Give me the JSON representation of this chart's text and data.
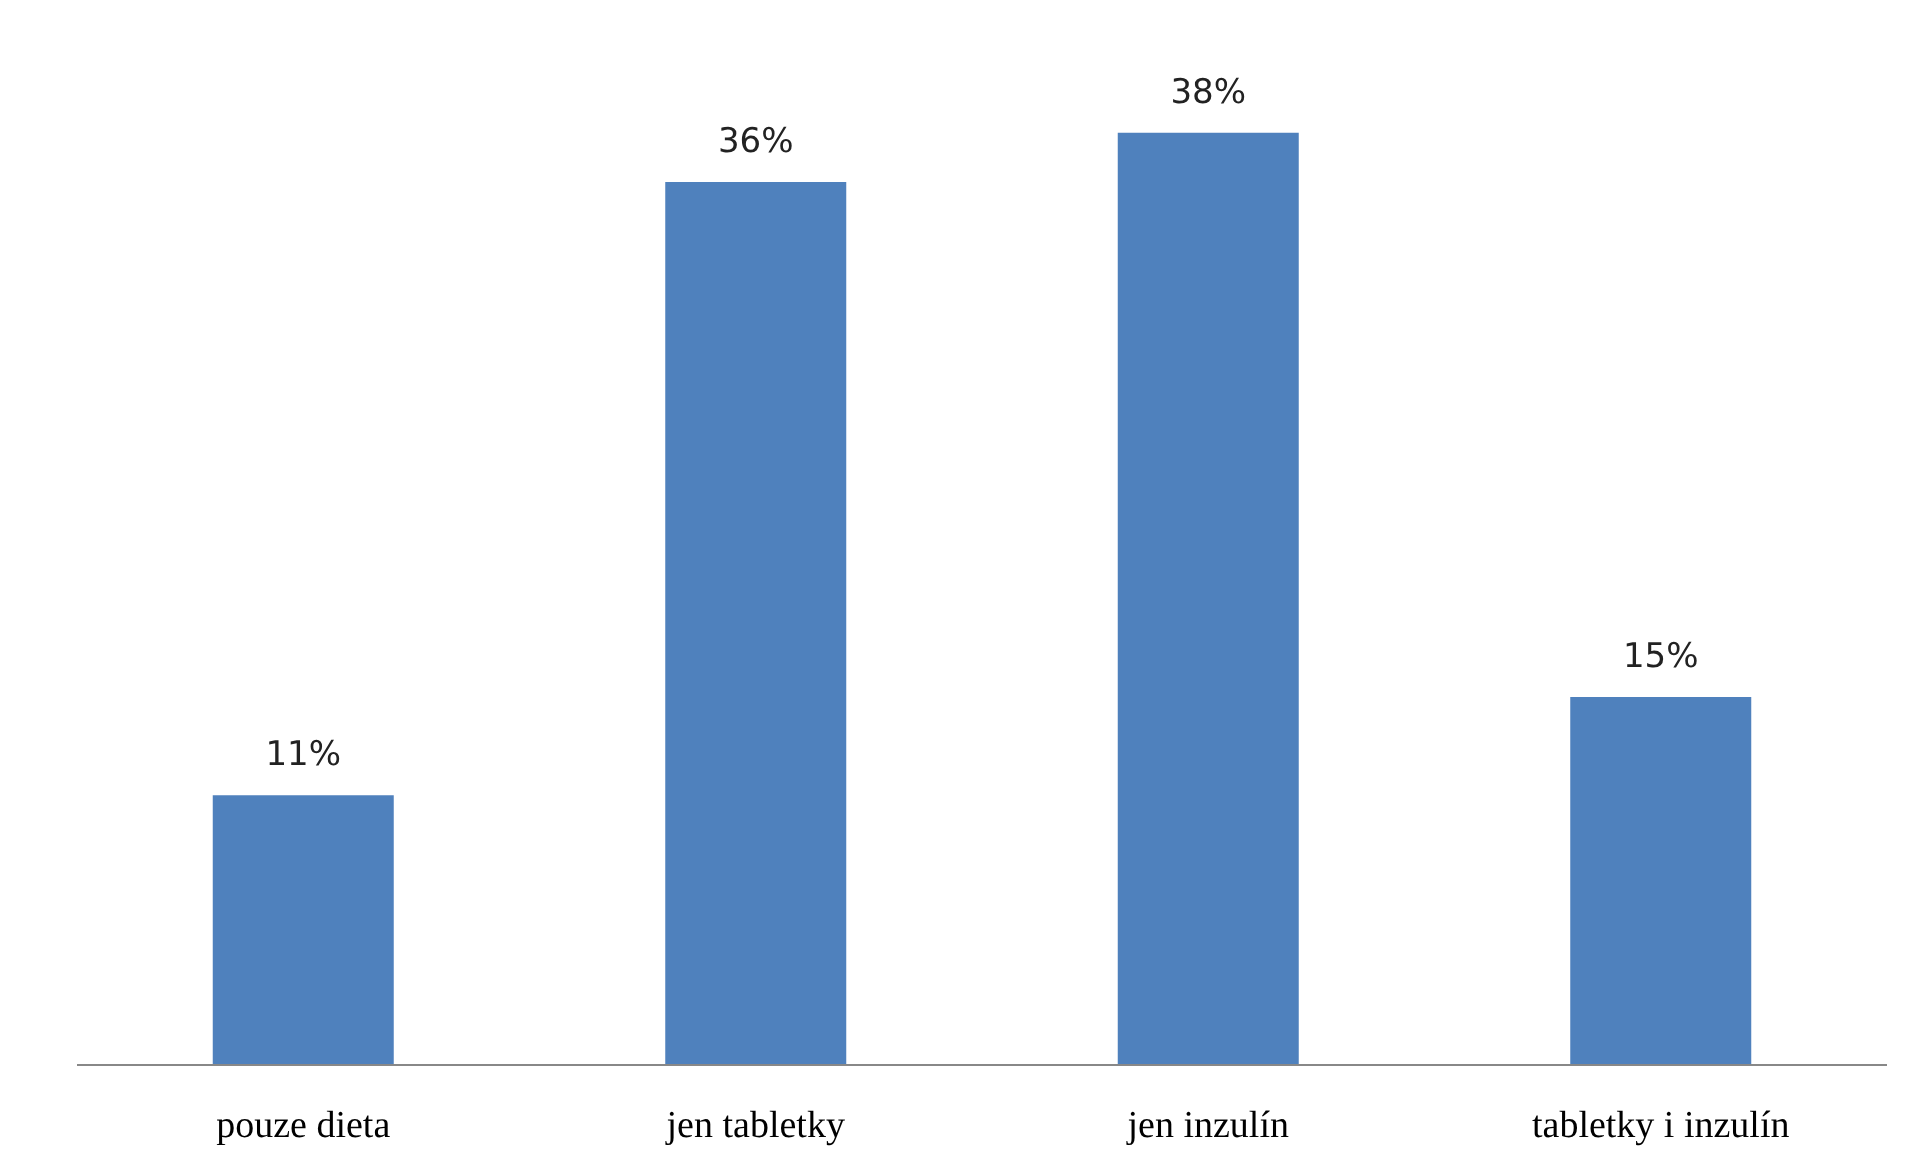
{
  "chart_data": {
    "type": "bar",
    "categories": [
      "pouze dieta",
      "jen tabletky",
      "jen inzulín",
      "tabletky i inzulín"
    ],
    "values": [
      11,
      36,
      38,
      15
    ],
    "color": "#4f81bd",
    "value_labels": [
      "11%",
      "36%",
      "38%",
      "15%"
    ]
  }
}
